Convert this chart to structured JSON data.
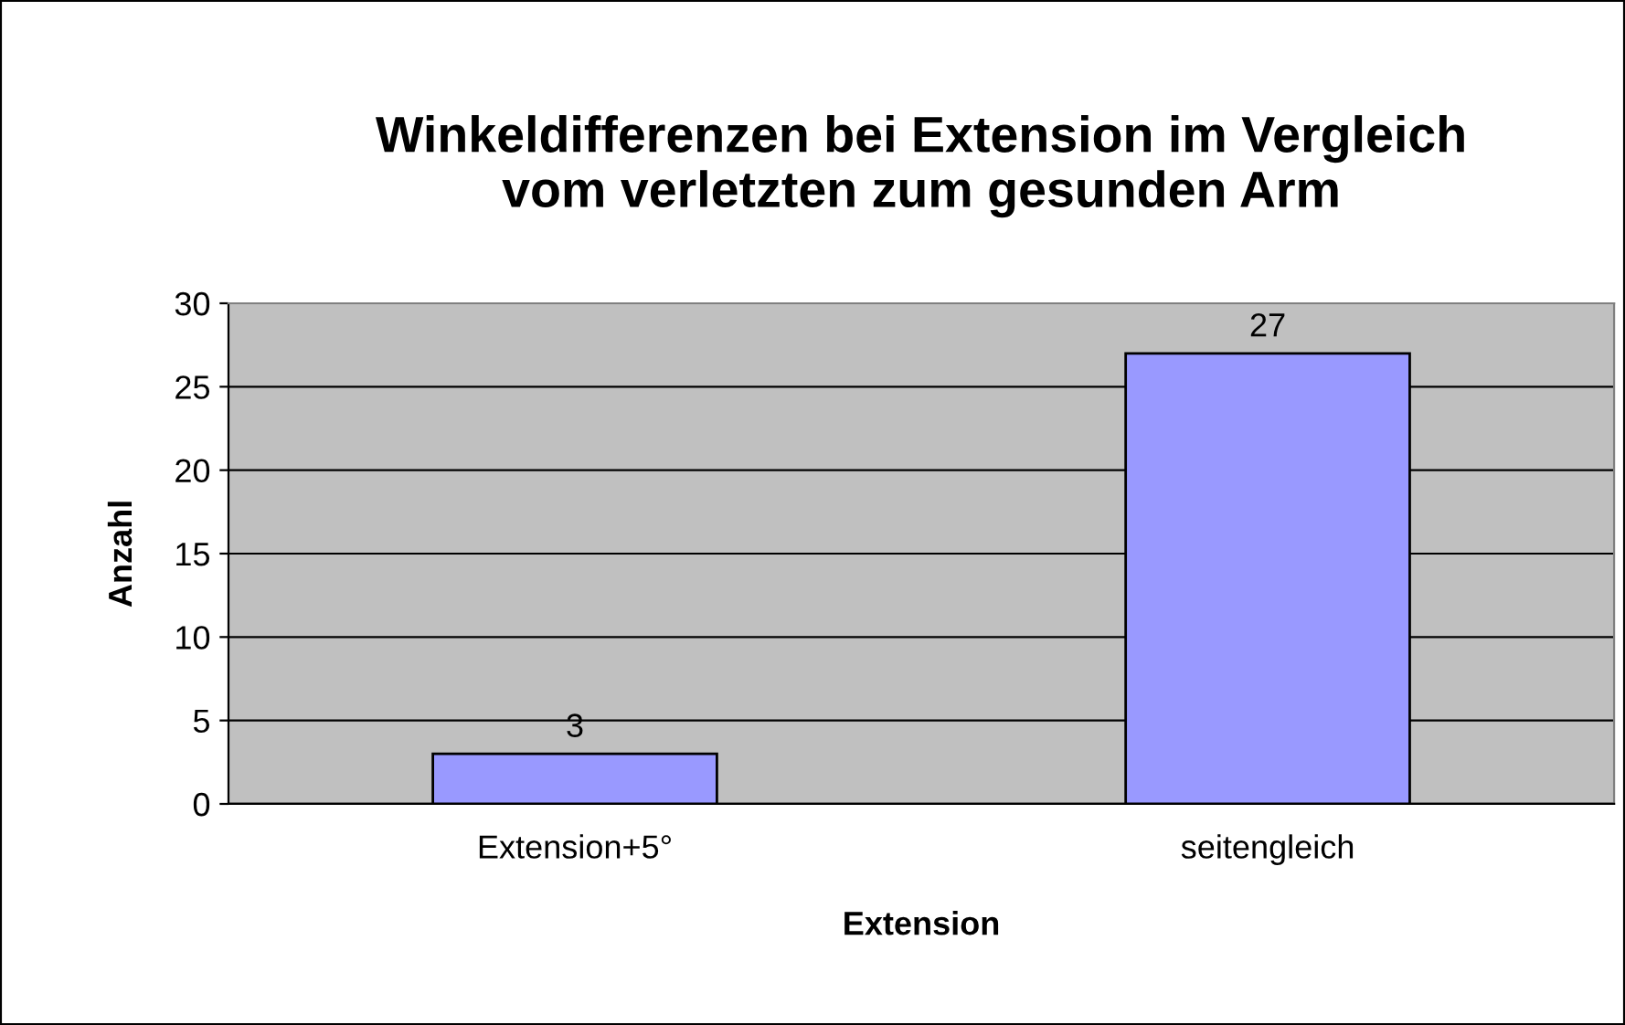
{
  "chart_data": {
    "type": "bar",
    "title": "Winkeldifferenzen bei Extension im Vergleich\nvom verletzten zum gesunden Arm",
    "xlabel": "Extension",
    "ylabel": "Anzahl",
    "categories": [
      "Extension+5°",
      "seitengleich"
    ],
    "values": [
      3,
      27
    ],
    "color": "#9999ff",
    "ylim": [
      0,
      30
    ],
    "yticks": [
      0,
      5,
      10,
      15,
      20,
      25,
      30
    ],
    "grid": "y",
    "data_labels": true
  }
}
